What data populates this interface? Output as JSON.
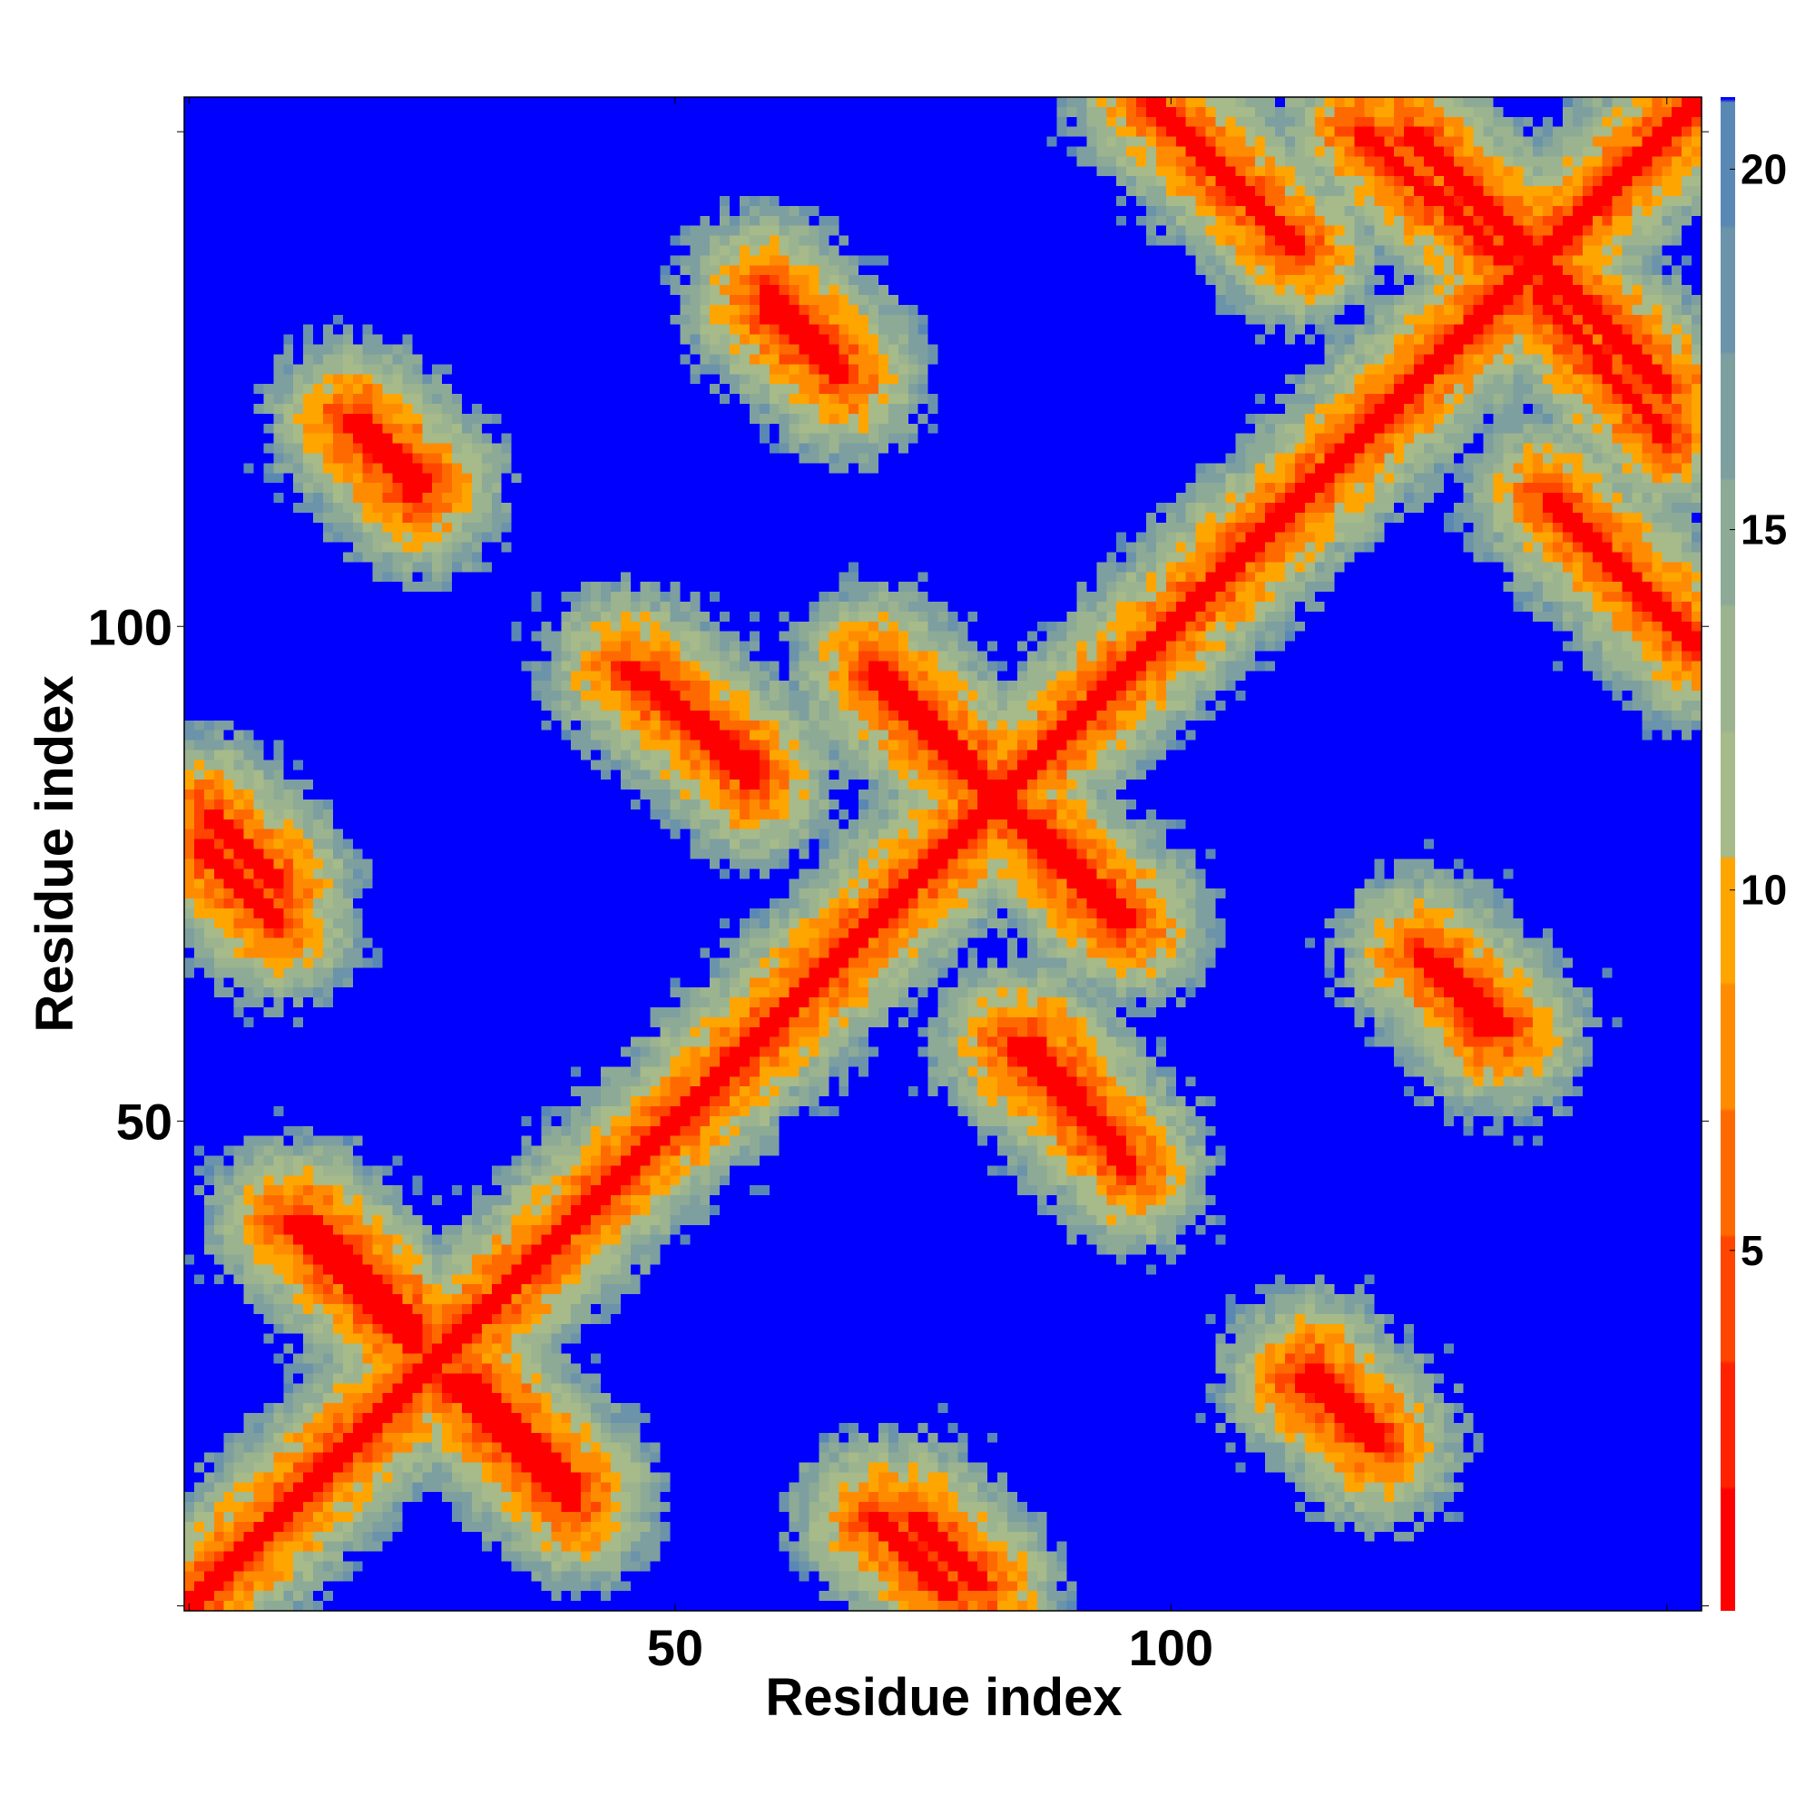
{
  "chart_data": {
    "type": "heatmap",
    "title": "",
    "xlabel": "Residue index",
    "ylabel": "Residue index",
    "xlim": [
      1,
      153
    ],
    "ylim": [
      1,
      153
    ],
    "x_ticks": [
      50,
      100
    ],
    "y_ticks": [
      50,
      100
    ],
    "colorbar": {
      "range": [
        0,
        21
      ],
      "ticks": [
        5,
        10,
        15,
        20
      ],
      "colors": [
        "#ff0000",
        "#ff2200",
        "#ff4500",
        "#ff6a00",
        "#ff8c00",
        "#ffa500",
        "#a6ba8a",
        "#9cb38f",
        "#8daa96",
        "#7d9fa0",
        "#6b93aa",
        "#5a88b4",
        "#0000ff"
      ]
    },
    "diagonal_value": 0,
    "background_value": 21,
    "contact_bands": [
      {
        "x_start": 2,
        "y_start": 78,
        "x_end": 10,
        "y_end": 70
      },
      {
        "x_start": 13,
        "y_start": 40,
        "x_end": 24,
        "y_end": 29
      },
      {
        "x_start": 27,
        "y_start": 24,
        "x_end": 40,
        "y_end": 11
      },
      {
        "x_start": 18,
        "y_start": 121,
        "x_end": 25,
        "y_end": 114
      },
      {
        "x_start": 45,
        "y_start": 96,
        "x_end": 58,
        "y_end": 84
      },
      {
        "x_start": 59,
        "y_start": 132,
        "x_end": 67,
        "y_end": 125
      },
      {
        "x_start": 70,
        "y_start": 95,
        "x_end": 85,
        "y_end": 80
      },
      {
        "x_start": 86,
        "y_start": 80,
        "x_end": 96,
        "y_end": 70
      },
      {
        "x_start": 86,
        "y_start": 58,
        "x_end": 95,
        "y_end": 47
      },
      {
        "x_start": 74,
        "y_start": 10,
        "x_end": 81,
        "y_end": 3
      },
      {
        "x_start": 98,
        "y_start": 153,
        "x_end": 113,
        "y_end": 138
      },
      {
        "x_start": 124,
        "y_start": 150,
        "x_end": 140,
        "y_end": 134
      },
      {
        "x_start": 137,
        "y_start": 134,
        "x_end": 150,
        "y_end": 119
      },
      {
        "x_start": 140,
        "y_start": 111,
        "x_end": 152,
        "y_end": 99
      },
      {
        "x_start": 113,
        "y_start": 24,
        "x_end": 121,
        "y_end": 17
      },
      {
        "x_start": 127,
        "y_start": 66,
        "x_end": 134,
        "y_end": 59
      }
    ]
  }
}
